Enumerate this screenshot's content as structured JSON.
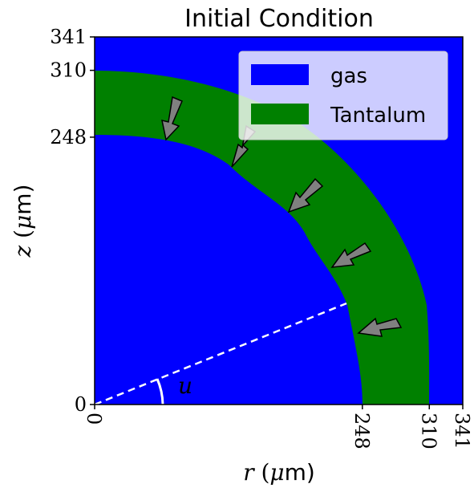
{
  "title": "Initial Condition",
  "axes": {
    "xlabel_var": "r",
    "xlabel_unit_open": " (",
    "xlabel_unit_mu": "μ",
    "xlabel_unit_rest": "m)",
    "ylabel_var": "z",
    "ylabel_unit_open": " (",
    "ylabel_unit_mu": "μ",
    "ylabel_unit_rest": "m)",
    "xlim": [
      0,
      341
    ],
    "ylim": [
      0,
      341
    ],
    "xticks": [
      {
        "value": 0,
        "label": "0"
      },
      {
        "value": 248,
        "label": "248"
      },
      {
        "value": 310,
        "label": "310"
      },
      {
        "value": 341,
        "label": "341"
      }
    ],
    "yticks": [
      {
        "value": 0,
        "label": "0"
      },
      {
        "value": 248,
        "label": "248"
      },
      {
        "value": 310,
        "label": "310"
      },
      {
        "value": 341,
        "label": "341"
      }
    ]
  },
  "legend": {
    "placement": "top-right",
    "items": [
      {
        "label": "gas",
        "color": "#0000ff"
      },
      {
        "label": "Tantalum",
        "color": "#008000"
      }
    ]
  },
  "colors": {
    "gas": "#0000ff",
    "tantalum": "#008000",
    "arrow_fill": "#808080",
    "dashed_line": "#ffffff"
  },
  "shell": {
    "inner_radius": 248,
    "outer_radius": 310
  },
  "angle_label": "u",
  "arrow_count": 5
}
